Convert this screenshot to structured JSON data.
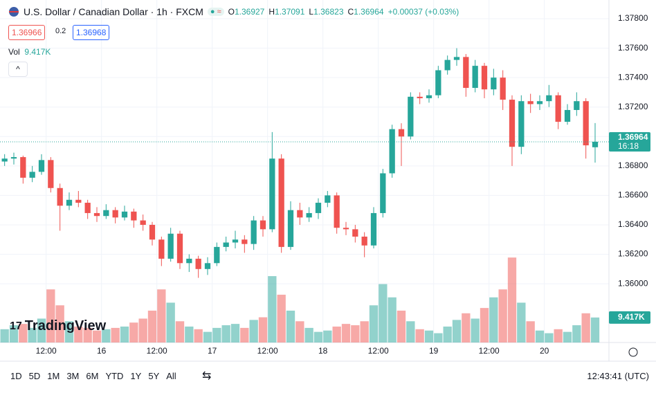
{
  "header": {
    "symbol": "U.S. Dollar / Canadian Dollar · 1h · FXCM",
    "ohlc": [
      {
        "label": "O",
        "value": "1.36927"
      },
      {
        "label": "H",
        "value": "1.37091"
      },
      {
        "label": "L",
        "value": "1.36823"
      },
      {
        "label": "C",
        "value": "1.36964"
      }
    ],
    "change": "+0.00037 (+0.03%)",
    "sell": "1.36966",
    "spread": "0.2",
    "buy": "1.36968",
    "vol_label": "Vol",
    "vol_value": "9.417K"
  },
  "chart_data": {
    "type": "candlestick",
    "up_color": "#26a69a",
    "down_color": "#ef5350",
    "grid": true,
    "ylim": [
      1.35601,
      1.37927
    ],
    "yticks": [
      {
        "value": 1.36,
        "label": "1.36000"
      },
      {
        "value": 1.362,
        "label": "1.36200"
      },
      {
        "value": 1.364,
        "label": "1.36400"
      },
      {
        "value": 1.366,
        "label": "1.36600"
      },
      {
        "value": 1.368,
        "label": "1.36800"
      },
      {
        "value": 1.37,
        "label": "1.37000"
      },
      {
        "value": 1.372,
        "label": "1.37200"
      },
      {
        "value": 1.374,
        "label": "1.37400"
      },
      {
        "value": 1.376,
        "label": "1.37600"
      },
      {
        "value": 1.378,
        "label": "1.37800"
      }
    ],
    "xlim": [
      -0.5,
      65.5
    ],
    "xticks": [
      {
        "value": 4.5,
        "label": "12:00"
      },
      {
        "value": 10.5,
        "label": "16"
      },
      {
        "value": 16.5,
        "label": "12:00"
      },
      {
        "value": 22.5,
        "label": "17"
      },
      {
        "value": 28.5,
        "label": "12:00"
      },
      {
        "value": 34.5,
        "label": "18"
      },
      {
        "value": 40.5,
        "label": "12:00"
      },
      {
        "value": 46.5,
        "label": "19"
      },
      {
        "value": 52.5,
        "label": "12:00"
      },
      {
        "value": 58.5,
        "label": "20"
      }
    ],
    "candles": [
      [
        1.3683,
        1.3688,
        1.368,
        1.3685
      ],
      [
        1.3685,
        1.3689,
        1.3681,
        1.3686
      ],
      [
        1.3686,
        1.3687,
        1.3668,
        1.3672
      ],
      [
        1.3672,
        1.368,
        1.3669,
        1.3676
      ],
      [
        1.3676,
        1.3688,
        1.3674,
        1.3684
      ],
      [
        1.3684,
        1.3686,
        1.3662,
        1.3665
      ],
      [
        1.3665,
        1.3668,
        1.3636,
        1.3653
      ],
      [
        1.3653,
        1.3662,
        1.365,
        1.3657
      ],
      [
        1.3657,
        1.3663,
        1.3652,
        1.3655
      ],
      [
        1.3655,
        1.3657,
        1.3644,
        1.3648
      ],
      [
        1.3648,
        1.3652,
        1.3642,
        1.3646
      ],
      [
        1.3646,
        1.3654,
        1.3644,
        1.365
      ],
      [
        1.365,
        1.3652,
        1.3641,
        1.3645
      ],
      [
        1.3645,
        1.3653,
        1.3643,
        1.3649
      ],
      [
        1.3649,
        1.3651,
        1.3638,
        1.3643
      ],
      [
        1.3643,
        1.3647,
        1.3636,
        1.364
      ],
      [
        1.364,
        1.3642,
        1.3626,
        1.363
      ],
      [
        1.363,
        1.3632,
        1.3612,
        1.3617
      ],
      [
        1.3617,
        1.3638,
        1.3615,
        1.3634
      ],
      [
        1.3634,
        1.3636,
        1.361,
        1.3614
      ],
      [
        1.3614,
        1.362,
        1.3608,
        1.3617
      ],
      [
        1.3617,
        1.3619,
        1.3604,
        1.361
      ],
      [
        1.361,
        1.3618,
        1.3606,
        1.3614
      ],
      [
        1.3614,
        1.3628,
        1.3612,
        1.3625
      ],
      [
        1.3625,
        1.3632,
        1.3622,
        1.3628
      ],
      [
        1.3628,
        1.3636,
        1.3624,
        1.363
      ],
      [
        1.363,
        1.3633,
        1.3621,
        1.3627
      ],
      [
        1.3627,
        1.3646,
        1.3623,
        1.3643
      ],
      [
        1.3643,
        1.3646,
        1.3632,
        1.3637
      ],
      [
        1.3637,
        1.3703,
        1.3635,
        1.3685
      ],
      [
        1.3685,
        1.3688,
        1.3621,
        1.3625
      ],
      [
        1.3625,
        1.3656,
        1.3623,
        1.365
      ],
      [
        1.365,
        1.3655,
        1.364,
        1.3645
      ],
      [
        1.3645,
        1.3652,
        1.3642,
        1.3648
      ],
      [
        1.3648,
        1.3658,
        1.3644,
        1.3655
      ],
      [
        1.3655,
        1.3663,
        1.3652,
        1.366
      ],
      [
        1.366,
        1.3662,
        1.3634,
        1.3638
      ],
      [
        1.3638,
        1.3642,
        1.3633,
        1.3637
      ],
      [
        1.3637,
        1.364,
        1.3628,
        1.3632
      ],
      [
        1.3632,
        1.3635,
        1.3618,
        1.3626
      ],
      [
        1.3626,
        1.3652,
        1.3624,
        1.3648
      ],
      [
        1.3648,
        1.3678,
        1.3645,
        1.3675
      ],
      [
        1.3675,
        1.3708,
        1.3672,
        1.3705
      ],
      [
        1.3705,
        1.3709,
        1.368,
        1.37
      ],
      [
        1.37,
        1.373,
        1.3698,
        1.3727
      ],
      [
        1.3727,
        1.373,
        1.3722,
        1.3726
      ],
      [
        1.3726,
        1.3732,
        1.3723,
        1.3728
      ],
      [
        1.3728,
        1.3748,
        1.3726,
        1.3745
      ],
      [
        1.3745,
        1.3755,
        1.3742,
        1.3752
      ],
      [
        1.3752,
        1.376,
        1.3748,
        1.3754
      ],
      [
        1.3754,
        1.3756,
        1.3727,
        1.3733
      ],
      [
        1.3733,
        1.3752,
        1.373,
        1.3748
      ],
      [
        1.3748,
        1.375,
        1.3726,
        1.3732
      ],
      [
        1.3732,
        1.3746,
        1.3728,
        1.374
      ],
      [
        1.374,
        1.3745,
        1.3718,
        1.3725
      ],
      [
        1.3725,
        1.3728,
        1.368,
        1.3693
      ],
      [
        1.3693,
        1.3728,
        1.3688,
        1.3724
      ],
      [
        1.3724,
        1.3729,
        1.3716,
        1.3722
      ],
      [
        1.3722,
        1.3728,
        1.3718,
        1.3724
      ],
      [
        1.3724,
        1.3735,
        1.372,
        1.3728
      ],
      [
        1.3728,
        1.373,
        1.3705,
        1.371
      ],
      [
        1.371,
        1.3722,
        1.3708,
        1.3718
      ],
      [
        1.3718,
        1.373,
        1.3714,
        1.3724
      ],
      [
        1.3724,
        1.3726,
        1.3685,
        1.3694
      ],
      [
        1.36927,
        1.37091,
        1.36823,
        1.36964
      ]
    ],
    "volume_ylim": [
      0,
      43000
    ],
    "volumes": [
      5000,
      6500,
      7000,
      5500,
      9000,
      20000,
      14000,
      8000,
      6000,
      5500,
      4500,
      5000,
      5500,
      6000,
      7500,
      9000,
      12000,
      20000,
      15000,
      8000,
      6000,
      5000,
      4000,
      5500,
      6500,
      7000,
      5500,
      8500,
      9500,
      25000,
      18000,
      12000,
      8000,
      5500,
      4000,
      4500,
      6000,
      7000,
      6500,
      8000,
      14000,
      22000,
      17000,
      12000,
      8000,
      5000,
      4500,
      3500,
      6000,
      8500,
      11000,
      9000,
      13000,
      17000,
      20000,
      32000,
      15000,
      8000,
      4500,
      3500,
      5000,
      4000,
      6500,
      11000,
      9417
    ],
    "last_volume_label": "9.417K",
    "countdown": "16:18"
  },
  "toolbar": {
    "ranges": [
      "1D",
      "5D",
      "1M",
      "3M",
      "6M",
      "YTD",
      "1Y",
      "5Y",
      "All"
    ],
    "clock": "12:43:41 (UTC)",
    "logo": "TradingView"
  }
}
